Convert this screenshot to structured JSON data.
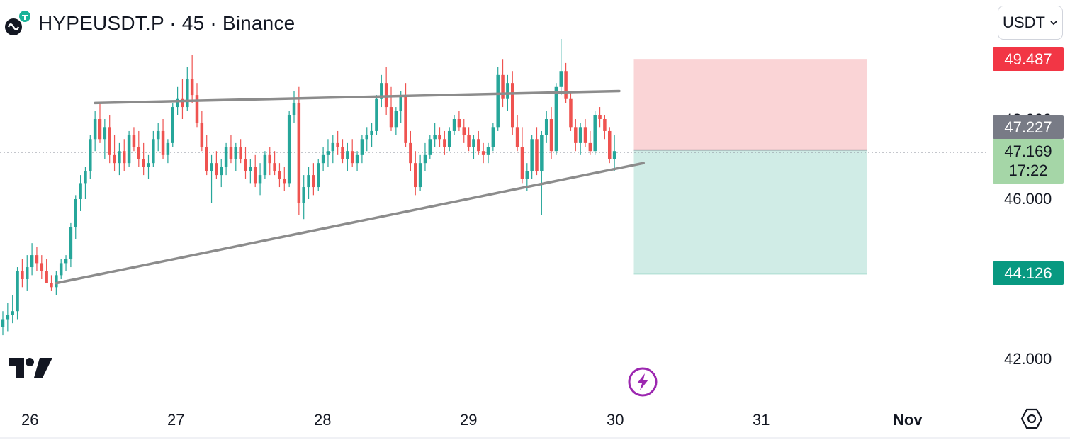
{
  "header": {
    "symbol_title": "HYPEUSDT.P · 45 · Binance",
    "logo_icon": "hyperliquid-logo-icon"
  },
  "toolbar": {
    "currency_label": "USDT",
    "currency_chevron_icon": "chevron-down-icon"
  },
  "price_tags": {
    "stop_level": "49.487",
    "entry_level": "47.227",
    "last_price": "47.169",
    "countdown": "17:22",
    "target_level": "44.126"
  },
  "y_axis": {
    "ticks": [
      "46.000",
      "42.000"
    ],
    "partial_tick": "48.000"
  },
  "x_axis": {
    "ticks": [
      "26",
      "27",
      "28",
      "29",
      "30",
      "31",
      "Nov"
    ]
  },
  "icons": {
    "brand": "tradingview-logo-icon",
    "flash": "lightning-icon",
    "settings": "gear-icon"
  },
  "colors": {
    "up": "#26a69a",
    "down": "#ef5350",
    "stop_tag": "#f23645",
    "target_tag": "#089981",
    "entry_tag": "#787b86",
    "last_price_tag": "#a5d6a7",
    "trendline": "#8c8c8c",
    "risk_zone": "#fad4d6",
    "reward_zone": "#d0ece6"
  },
  "chart_data": {
    "type": "candlestick",
    "interval": "45",
    "y_range": [
      41.6,
      50.2
    ],
    "x_range_days": [
      "26",
      "Nov"
    ],
    "candles": [
      [
        42.8,
        43.2,
        42.6,
        43.0
      ],
      [
        43.0,
        43.4,
        42.7,
        43.1
      ],
      [
        43.1,
        43.6,
        42.9,
        43.2
      ],
      [
        43.2,
        44.3,
        43.0,
        44.2
      ],
      [
        44.2,
        44.5,
        43.8,
        44.0
      ],
      [
        44.0,
        44.6,
        43.7,
        44.3
      ],
      [
        44.3,
        44.9,
        44.1,
        44.6
      ],
      [
        44.6,
        44.8,
        44.2,
        44.4
      ],
      [
        44.4,
        44.6,
        44.0,
        44.2
      ],
      [
        44.2,
        44.5,
        43.9,
        43.9
      ],
      [
        43.9,
        44.1,
        43.7,
        43.8
      ],
      [
        43.8,
        44.2,
        43.6,
        44.1
      ],
      [
        44.1,
        44.5,
        44.0,
        44.4
      ],
      [
        44.4,
        44.6,
        44.2,
        44.5
      ],
      [
        44.5,
        45.4,
        44.3,
        45.3
      ],
      [
        45.3,
        46.1,
        45.0,
        46.0
      ],
      [
        46.0,
        46.6,
        45.7,
        46.4
      ],
      [
        46.4,
        46.8,
        46.0,
        46.7
      ],
      [
        46.7,
        47.6,
        46.5,
        47.5
      ],
      [
        47.5,
        48.2,
        47.2,
        48.0
      ],
      [
        48.0,
        48.4,
        47.4,
        47.5
      ],
      [
        47.5,
        48.0,
        47.0,
        47.8
      ],
      [
        47.8,
        48.1,
        46.9,
        47.1
      ],
      [
        47.1,
        47.6,
        46.7,
        46.9
      ],
      [
        46.9,
        47.4,
        46.6,
        47.2
      ],
      [
        47.2,
        47.5,
        46.7,
        46.9
      ],
      [
        46.9,
        47.7,
        46.8,
        47.6
      ],
      [
        47.6,
        47.8,
        47.2,
        47.3
      ],
      [
        47.3,
        47.7,
        46.8,
        47.0
      ],
      [
        47.0,
        47.4,
        46.6,
        46.8
      ],
      [
        46.8,
        47.1,
        46.5,
        46.9
      ],
      [
        46.9,
        47.7,
        46.8,
        47.5
      ],
      [
        47.5,
        47.9,
        47.2,
        47.7
      ],
      [
        47.7,
        48.0,
        47.0,
        47.1
      ],
      [
        47.1,
        47.5,
        46.9,
        47.4
      ],
      [
        47.4,
        48.4,
        47.3,
        48.3
      ],
      [
        48.3,
        48.8,
        48.1,
        48.5
      ],
      [
        48.5,
        49.0,
        48.0,
        48.3
      ],
      [
        48.3,
        49.3,
        48.2,
        49.0
      ],
      [
        49.0,
        49.6,
        48.4,
        48.6
      ],
      [
        48.6,
        48.9,
        47.8,
        47.9
      ],
      [
        47.9,
        48.2,
        47.2,
        47.3
      ],
      [
        47.3,
        47.6,
        46.6,
        46.7
      ],
      [
        46.7,
        47.1,
        45.9,
        46.9
      ],
      [
        46.9,
        47.2,
        46.5,
        46.6
      ],
      [
        46.6,
        47.0,
        46.3,
        46.8
      ],
      [
        46.8,
        47.4,
        46.6,
        47.3
      ],
      [
        47.3,
        47.6,
        46.9,
        47.0
      ],
      [
        47.0,
        47.4,
        46.7,
        47.3
      ],
      [
        47.3,
        47.5,
        46.9,
        47.0
      ],
      [
        47.0,
        47.3,
        46.5,
        46.7
      ],
      [
        46.7,
        47.0,
        46.4,
        46.8
      ],
      [
        46.8,
        47.1,
        46.3,
        46.4
      ],
      [
        46.4,
        46.9,
        46.1,
        46.6
      ],
      [
        46.6,
        47.2,
        46.5,
        47.1
      ],
      [
        47.1,
        47.3,
        46.6,
        46.9
      ],
      [
        46.9,
        47.2,
        46.6,
        46.7
      ],
      [
        46.7,
        46.9,
        46.3,
        46.5
      ],
      [
        46.5,
        46.8,
        46.2,
        46.4
      ],
      [
        46.4,
        48.2,
        46.3,
        48.1
      ],
      [
        48.1,
        48.7,
        47.9,
        48.4
      ],
      [
        48.4,
        48.8,
        45.6,
        45.9
      ],
      [
        45.9,
        46.6,
        45.5,
        46.3
      ],
      [
        46.3,
        46.8,
        46.0,
        46.6
      ],
      [
        46.6,
        46.9,
        46.1,
        46.3
      ],
      [
        46.3,
        47.0,
        46.2,
        46.9
      ],
      [
        46.9,
        47.3,
        46.7,
        47.1
      ],
      [
        47.1,
        47.5,
        46.8,
        47.2
      ],
      [
        47.2,
        47.6,
        46.9,
        47.4
      ],
      [
        47.4,
        47.7,
        47.1,
        47.3
      ],
      [
        47.3,
        47.5,
        46.9,
        47.0
      ],
      [
        47.0,
        47.4,
        46.7,
        47.2
      ],
      [
        47.2,
        47.5,
        46.8,
        46.9
      ],
      [
        46.9,
        47.2,
        46.7,
        47.1
      ],
      [
        47.1,
        47.6,
        46.9,
        47.5
      ],
      [
        47.5,
        47.8,
        47.2,
        47.6
      ],
      [
        47.6,
        47.9,
        47.3,
        47.7
      ],
      [
        47.7,
        48.6,
        47.6,
        48.5
      ],
      [
        48.5,
        49.1,
        48.3,
        48.9
      ],
      [
        48.9,
        49.3,
        48.1,
        48.3
      ],
      [
        48.3,
        48.8,
        47.7,
        47.8
      ],
      [
        47.8,
        48.3,
        47.6,
        48.2
      ],
      [
        48.2,
        48.7,
        47.9,
        48.6
      ],
      [
        48.6,
        48.9,
        47.3,
        47.4
      ],
      [
        47.4,
        47.7,
        46.7,
        46.9
      ],
      [
        46.9,
        47.2,
        46.1,
        46.3
      ],
      [
        46.3,
        47.1,
        46.2,
        46.9
      ],
      [
        46.9,
        47.4,
        46.7,
        47.1
      ],
      [
        47.1,
        47.6,
        47.0,
        47.5
      ],
      [
        47.5,
        47.9,
        47.3,
        47.6
      ],
      [
        47.6,
        47.8,
        47.3,
        47.5
      ],
      [
        47.5,
        47.7,
        47.1,
        47.3
      ],
      [
        47.3,
        47.8,
        47.2,
        47.7
      ],
      [
        47.7,
        48.1,
        47.6,
        48.0
      ],
      [
        48.0,
        48.2,
        47.7,
        47.8
      ],
      [
        47.8,
        48.0,
        47.4,
        47.6
      ],
      [
        47.6,
        47.8,
        47.2,
        47.3
      ],
      [
        47.3,
        47.6,
        47.0,
        47.5
      ],
      [
        47.5,
        47.7,
        47.1,
        47.2
      ],
      [
        47.2,
        47.4,
        46.9,
        47.1
      ],
      [
        47.1,
        47.4,
        46.9,
        47.3
      ],
      [
        47.3,
        47.9,
        47.2,
        47.8
      ],
      [
        47.8,
        49.3,
        47.7,
        49.1
      ],
      [
        49.1,
        49.5,
        48.3,
        48.5
      ],
      [
        48.5,
        49.1,
        48.2,
        48.9
      ],
      [
        48.9,
        49.2,
        47.6,
        47.8
      ],
      [
        47.8,
        48.1,
        47.2,
        47.3
      ],
      [
        47.3,
        47.8,
        46.4,
        46.5
      ],
      [
        46.5,
        46.9,
        46.2,
        46.7
      ],
      [
        46.7,
        47.6,
        46.5,
        47.5
      ],
      [
        47.5,
        47.8,
        46.6,
        46.7
      ],
      [
        46.7,
        47.7,
        45.6,
        47.6
      ],
      [
        47.6,
        48.2,
        47.4,
        48.0
      ],
      [
        48.0,
        48.3,
        47.0,
        47.2
      ],
      [
        47.2,
        48.9,
        47.1,
        48.8
      ],
      [
        48.8,
        50.0,
        48.6,
        49.2
      ],
      [
        49.2,
        49.4,
        48.4,
        48.5
      ],
      [
        48.5,
        48.7,
        47.7,
        47.8
      ],
      [
        47.8,
        48.0,
        47.2,
        47.4
      ],
      [
        47.4,
        47.9,
        47.1,
        47.8
      ],
      [
        47.8,
        48.0,
        47.3,
        47.4
      ],
      [
        47.4,
        47.7,
        47.1,
        47.2
      ],
      [
        47.2,
        48.2,
        47.1,
        48.1
      ],
      [
        48.1,
        48.3,
        47.8,
        48.0
      ],
      [
        48.0,
        48.1,
        47.5,
        47.7
      ],
      [
        47.7,
        47.8,
        46.9,
        47.0
      ],
      [
        47.0,
        47.6,
        46.7,
        47.2
      ]
    ],
    "ascending_trendline": {
      "start": {
        "candle": 11,
        "price": 43.9
      },
      "end": {
        "candle": 132,
        "price": 46.9
      }
    },
    "resistance_line": {
      "start": {
        "candle": 19,
        "price": 48.4
      },
      "end": {
        "candle": 127,
        "price": 48.7
      }
    },
    "short_position": {
      "entry": 47.227,
      "stop": 49.487,
      "target": 44.126,
      "start_candle": 130,
      "end_candle": 178
    },
    "last_price": 47.169
  }
}
